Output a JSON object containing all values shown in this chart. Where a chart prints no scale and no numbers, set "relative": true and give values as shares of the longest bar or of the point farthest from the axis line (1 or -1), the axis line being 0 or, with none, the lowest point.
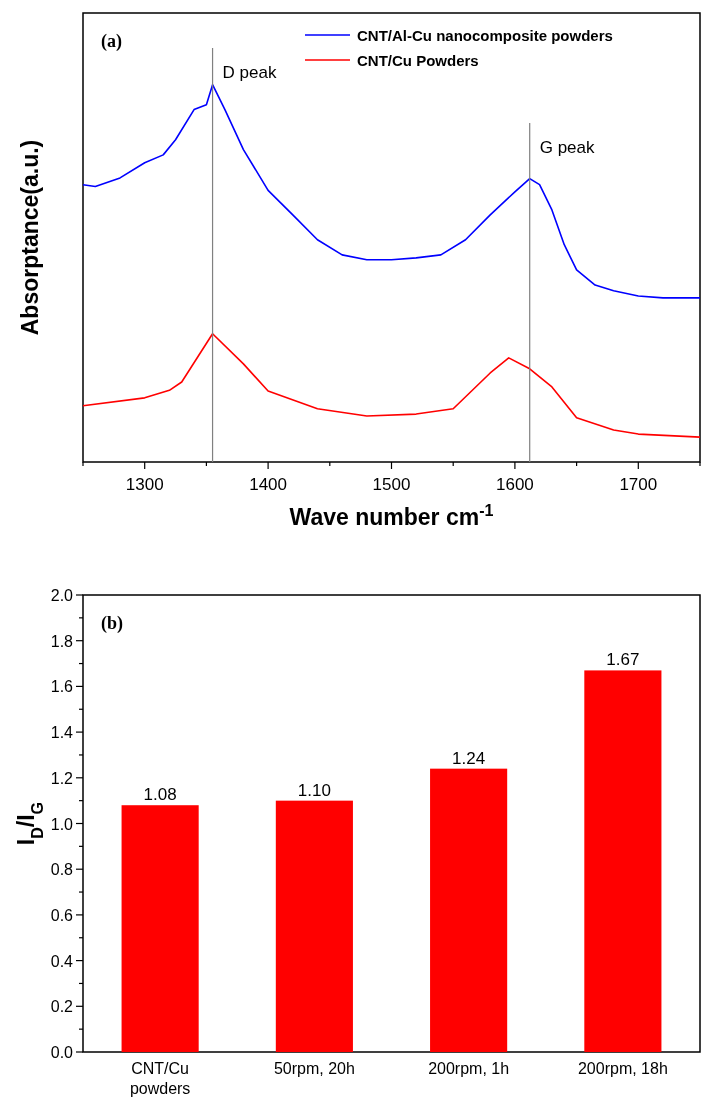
{
  "chart_data": [
    {
      "type": "line",
      "relative": true,
      "xlabel": "Wave number cm$^{-1}$",
      "ylabel": "Absorptance(a.u.)",
      "legend": "top right",
      "xlim": [
        1250,
        1750
      ],
      "xticks": [
        {
          "value": 1250,
          "label": null
        },
        1300,
        {
          "value": 1350,
          "label": null
        },
        1400,
        {
          "value": 1450,
          "label": null
        },
        1500,
        {
          "value": 1550,
          "label": null
        },
        1600,
        {
          "value": 1650,
          "label": null
        },
        1700,
        {
          "value": 1750,
          "label": null
        }
      ],
      "x": [
        1250,
        1260,
        1280,
        1300,
        1315,
        1325,
        1340,
        1350,
        1355,
        1365,
        1380,
        1400,
        1420,
        1440,
        1460,
        1480,
        1500,
        1520,
        1540,
        1560,
        1580,
        1600,
        1612,
        1620,
        1630,
        1640,
        1650,
        1665,
        1680,
        1700,
        1720,
        1750
      ],
      "series": [
        {
          "name": "CNT/Al-Cu nanocomposite powders",
          "color": "#0000ff",
          "values": [
            0.735,
            0.73,
            0.753,
            0.793,
            0.814,
            0.854,
            0.934,
            0.947,
            1.0,
            0.934,
            0.828,
            0.72,
            0.655,
            0.589,
            0.549,
            0.536,
            0.536,
            0.541,
            0.549,
            0.589,
            0.655,
            0.716,
            0.751,
            0.735,
            0.668,
            0.576,
            0.509,
            0.469,
            0.454,
            0.44,
            0.435,
            0.435
          ]
        },
        {
          "name": "CNT/Cu Powders",
          "color": "#ff0000",
          "x": [
            1250,
            1300,
            1320,
            1330,
            1355,
            1380,
            1400,
            1440,
            1480,
            1520,
            1550,
            1580,
            1595,
            1612,
            1630,
            1650,
            1680,
            1700,
            1750
          ],
          "values": [
            0.149,
            0.17,
            0.19,
            0.212,
            0.34,
            0.26,
            0.188,
            0.141,
            0.122,
            0.127,
            0.141,
            0.236,
            0.276,
            0.247,
            0.199,
            0.117,
            0.085,
            0.074,
            0.066
          ]
        }
      ],
      "ref_lines": [
        {
          "axis": "x",
          "value": 1355,
          "label": "D peak",
          "color": "#808080"
        },
        {
          "axis": "x",
          "value": 1612,
          "label": "G peak",
          "color": "#808080"
        }
      ],
      "annotations": [
        "(a)"
      ]
    },
    {
      "type": "bar",
      "ylabel": "I$_{D}$/I$_{G}$",
      "categories": [
        "CNT/Cu powders",
        "50rpm, 20h",
        "200rpm, 1h",
        "200rpm, 18h"
      ],
      "values": [
        1.08,
        1.1,
        1.24,
        1.67
      ],
      "value_labels": [
        "1.08",
        "1.10",
        "1.24",
        "1.67"
      ],
      "color": "#ff0000",
      "ylim": [
        0,
        2
      ],
      "yticks": [
        {
          "value": 0,
          "label": "0.0"
        },
        {
          "value": 0.1,
          "label": null
        },
        {
          "value": 0.2,
          "label": "0.2"
        },
        {
          "value": 0.3,
          "label": null
        },
        {
          "value": 0.4,
          "label": "0.4"
        },
        {
          "value": 0.5,
          "label": null
        },
        {
          "value": 0.6,
          "label": "0.6"
        },
        {
          "value": 0.7,
          "label": null
        },
        {
          "value": 0.8,
          "label": "0.8"
        },
        {
          "value": 0.9,
          "label": null
        },
        {
          "value": 1,
          "label": "1.0"
        },
        {
          "value": 1.1,
          "label": null
        },
        {
          "value": 1.2,
          "label": "1.2"
        },
        {
          "value": 1.3,
          "label": null
        },
        {
          "value": 1.4,
          "label": "1.4"
        },
        {
          "value": 1.5,
          "label": null
        },
        {
          "value": 1.6,
          "label": "1.6"
        },
        {
          "value": 1.7,
          "label": null
        },
        {
          "value": 1.8,
          "label": "1.8"
        },
        {
          "value": 1.9,
          "label": null
        },
        {
          "value": 2,
          "label": "2.0"
        }
      ],
      "annotations": [
        "(b)"
      ]
    }
  ]
}
